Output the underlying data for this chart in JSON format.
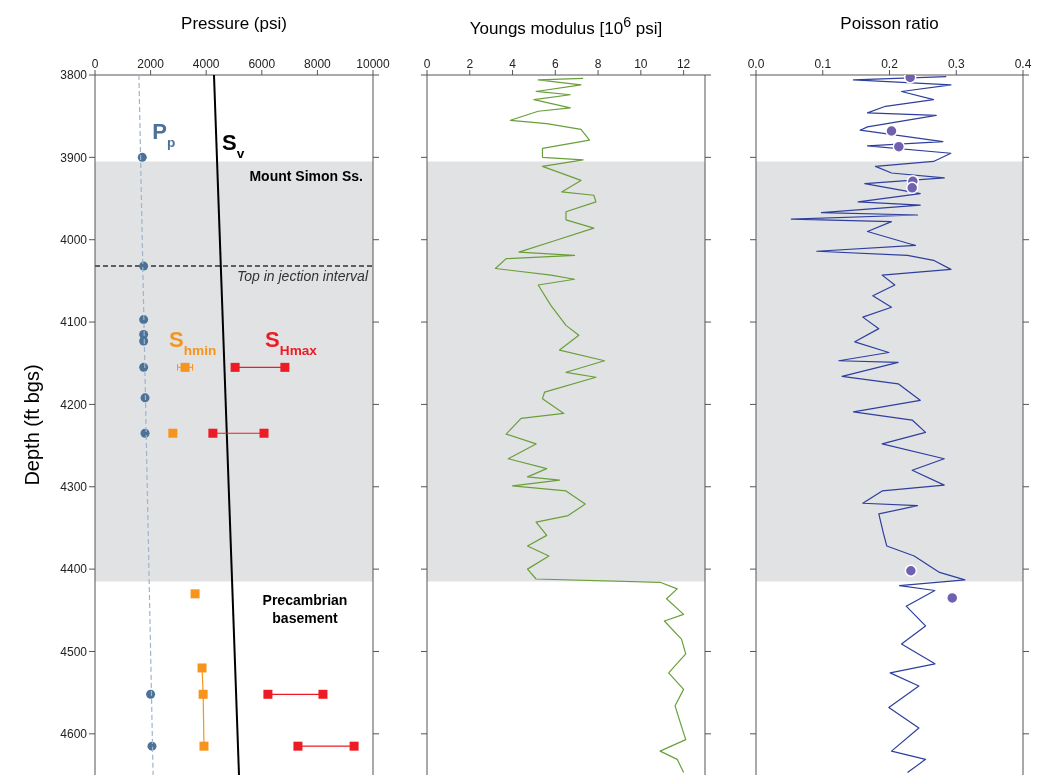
{
  "chart_data": [
    {
      "type": "scatter",
      "title": "Pressure (psi)",
      "ylabel": "Depth (ft bgs)",
      "xlim": [
        0,
        10000
      ],
      "xticks": [
        0,
        2000,
        4000,
        6000,
        8000,
        10000
      ],
      "ylim": [
        4650,
        3800
      ],
      "yticks": [
        3800,
        3900,
        4000,
        4100,
        4200,
        4300,
        4400,
        4500,
        4600
      ],
      "legend": false,
      "grid": false,
      "bands": [
        {
          "axis": "y",
          "from": 3905,
          "to": 4415,
          "label": "Mount Simon Ss.",
          "color": "#e1e2e4"
        }
      ],
      "ref_lines": [
        {
          "axis": "y",
          "value": 4032,
          "label": "Top in jection interval",
          "line_style": "dashed",
          "color": "#333333"
        }
      ],
      "annotations": [
        "Precambrian basement"
      ],
      "series": [
        {
          "name": "P$_{p}$",
          "type": "scatter",
          "marker": "circle",
          "color": "#4d7298",
          "x": [
            1700,
            1750,
            1750,
            1750,
            1750,
            1750,
            1800,
            1800,
            2000,
            2050
          ],
          "values": [
            3900,
            4032,
            4097,
            4115,
            4123,
            4155,
            4192,
            4235,
            4552,
            4615
          ]
        },
        {
          "type": "line",
          "line_style": "dashed",
          "color": "#9db5cf",
          "x": [
            1580,
            2090
          ],
          "values": [
            3800,
            4650
          ]
        },
        {
          "name": "S$_{v}$",
          "type": "line",
          "color": "#000000",
          "x": [
            4280,
            5180
          ],
          "values": [
            3800,
            4650
          ]
        },
        {
          "name": "S$_{hmin}$",
          "type": "scatter",
          "marker": "square",
          "color": "#f7941d",
          "x": [
            3240,
            2800,
            3600,
            3850,
            3890,
            3920
          ],
          "values": [
            4155,
            4235,
            4430,
            4520,
            4552,
            4615
          ],
          "xerrors": [
            270,
            80,
            null,
            null,
            null,
            null
          ]
        },
        {
          "type": "line",
          "color": "#f7941d",
          "x": [
            3850,
            3890,
            3920
          ],
          "values": [
            4520,
            4552,
            4615
          ]
        },
        {
          "name": "S$_{Hmax}$",
          "type": "line",
          "marker": "square",
          "color": "#ed1c24",
          "x": [
            5040,
            6830,
            null,
            4240,
            6080,
            null,
            6220,
            8200,
            null,
            7300,
            9320
          ],
          "values": [
            4155,
            4155,
            null,
            4235,
            4235,
            null,
            4552,
            4552,
            null,
            4615,
            4615
          ]
        }
      ]
    },
    {
      "type": "line",
      "title": "Youngs modulus [10$^{6}$ psi]",
      "xlim": [
        0,
        13
      ],
      "xticks": [
        0,
        2,
        4,
        6,
        8,
        10,
        12
      ],
      "ylim": [
        4650,
        3800
      ],
      "yticks": [
        3800,
        3900,
        4000,
        4100,
        4200,
        4300,
        4400,
        4500,
        4600
      ],
      "tick_labels": "x",
      "legend": false,
      "grid": false,
      "bands": [
        {
          "axis": "y",
          "from": 3905,
          "to": 4415,
          "color": "#e1e2e4"
        }
      ],
      "series": [
        {
          "color": "#6a9f3a",
          "x": [
            7.3,
            5.2,
            7.2,
            5.1,
            6.7,
            5.0,
            6.7,
            5.2,
            3.9,
            5.6,
            7.2,
            7.6,
            5.4,
            5.4,
            7.3,
            5.4,
            7.2,
            6.3,
            7.8,
            7.9,
            6.5,
            6.5,
            7.8,
            6.0,
            4.3,
            6.9,
            3.7,
            3.2,
            5.8,
            6.9,
            5.2,
            5.8,
            6.5,
            7.1,
            6.2,
            8.3,
            6.5,
            7.9,
            5.5,
            5.4,
            6.4,
            4.4,
            3.7,
            5.1,
            3.8,
            5.6,
            4.7,
            6.2,
            4.0,
            6.5,
            7.4,
            6.6,
            5.1,
            5.6,
            4.7,
            5.7,
            4.7,
            5.1,
            10.9,
            11.7,
            11.2,
            12.0,
            11.1,
            11.9,
            12.1,
            11.3,
            12.0,
            11.6,
            11.9,
            12.1,
            10.9,
            11.7,
            12.0
          ],
          "values": [
            3804,
            3806,
            3812,
            3820,
            3824,
            3830,
            3840,
            3844,
            3855,
            3859,
            3866,
            3879,
            3889,
            3900,
            3903,
            3911,
            3928,
            3942,
            3946,
            3954,
            3966,
            3976,
            3986,
            4001,
            4015,
            4019,
            4023,
            4035,
            4043,
            4048,
            4055,
            4080,
            4104,
            4116,
            4134,
            4147,
            4161,
            4167,
            4185,
            4193,
            4211,
            4217,
            4236,
            4248,
            4266,
            4278,
            4288,
            4292,
            4299,
            4305,
            4321,
            4335,
            4343,
            4359,
            4372,
            4384,
            4400,
            4412,
            4416,
            4424,
            4436,
            4455,
            4463,
            4485,
            4503,
            4526,
            4546,
            4566,
            4591,
            4607,
            4621,
            4631,
            4647
          ]
        }
      ]
    },
    {
      "type": "line",
      "title": "Poisson ratio",
      "xlim": [
        0,
        0.4
      ],
      "xticks": [
        {
          "value": 0,
          "label": "0.0"
        },
        0.1,
        0.2,
        0.3,
        0.4
      ],
      "ylim": [
        4650,
        3800
      ],
      "yticks": [
        3800,
        3900,
        4000,
        4100,
        4200,
        4300,
        4400,
        4500,
        4600
      ],
      "tick_labels": "x",
      "legend": false,
      "grid": false,
      "bands": [
        {
          "axis": "y",
          "from": 3905,
          "to": 4415,
          "color": "#e1e2e4"
        }
      ],
      "series": [
        {
          "color": "#2e3f9e",
          "x": [
            0.285,
            0.146,
            0.292,
            0.218,
            0.266,
            0.194,
            0.167,
            0.27,
            0.167,
            0.156,
            0.28,
            0.167,
            0.292,
            0.266,
            0.179,
            0.203,
            0.282,
            0.163,
            0.246,
            0.153,
            0.246,
            0.098,
            0.242,
            0.053,
            0.203,
            0.167,
            0.239,
            0.091,
            0.227,
            0.266,
            0.292,
            0.189,
            0.208,
            0.175,
            0.203,
            0.16,
            0.184,
            0.148,
            0.199,
            0.124,
            0.213,
            0.129,
            0.213,
            0.246,
            0.146,
            0.234,
            0.254,
            0.189,
            0.282,
            0.234,
            0.282,
            0.189,
            0.16,
            0.242,
            0.184,
            0.191,
            0.196,
            0.237,
            0.275,
            0.313,
            0.215,
            0.268,
            0.225,
            0.254,
            0.218,
            0.268,
            0.201,
            0.244,
            0.199,
            0.244,
            0.203,
            0.254,
            0.227
          ],
          "values": [
            3802,
            3806,
            3812,
            3820,
            3830,
            3838,
            3846,
            3849,
            3863,
            3867,
            3881,
            3886,
            3895,
            3905,
            3911,
            3919,
            3925,
            3932,
            3944,
            3954,
            3958,
            3967,
            3970,
            3975,
            3978,
            3990,
            4007,
            4014,
            4019,
            4025,
            4036,
            4043,
            4055,
            4068,
            4082,
            4094,
            4108,
            4124,
            4137,
            4147,
            4149,
            4166,
            4175,
            4195,
            4209,
            4219,
            4234,
            4248,
            4266,
            4280,
            4298,
            4305,
            4320,
            4323,
            4333,
            4357,
            4372,
            4384,
            4404,
            4413,
            4420,
            4426,
            4445,
            4469,
            4491,
            4515,
            4526,
            4542,
            4568,
            4593,
            4621,
            4631,
            4647
          ]
        },
        {
          "type": "scatter",
          "marker": "circle",
          "color": "#7060b0",
          "x": [
            0.231,
            0.203,
            0.214,
            0.235,
            0.234,
            0.232,
            0.294
          ],
          "values": [
            3803,
            3868,
            3887,
            3929,
            3937,
            4402,
            4435
          ]
        }
      ]
    }
  ]
}
